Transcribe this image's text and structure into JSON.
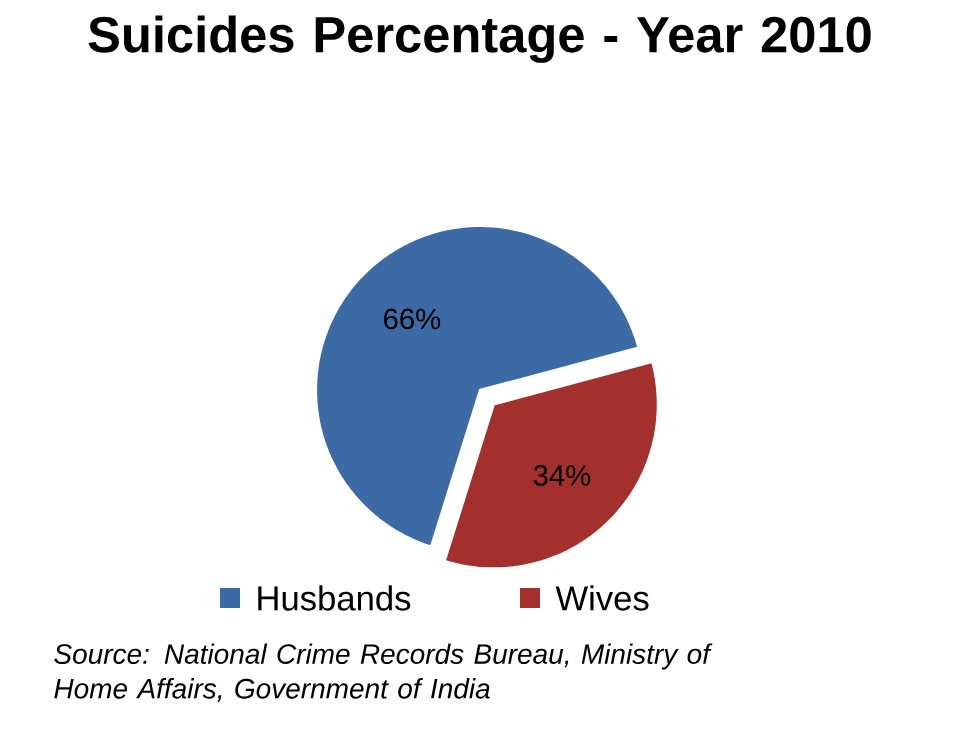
{
  "chart_data": {
    "type": "pie",
    "title": "Suicides Percentage - Year 2010",
    "categories": [
      "Husbands",
      "Wives"
    ],
    "values": [
      66,
      34
    ],
    "colors": [
      "#3c6aa5",
      "#a4302e"
    ],
    "value_labels": [
      "66%",
      "34%"
    ],
    "legend": "bottom",
    "annotations": [
      "Source: National Crime Records Bureau, Ministry of Home Affairs, Government of India"
    ]
  }
}
